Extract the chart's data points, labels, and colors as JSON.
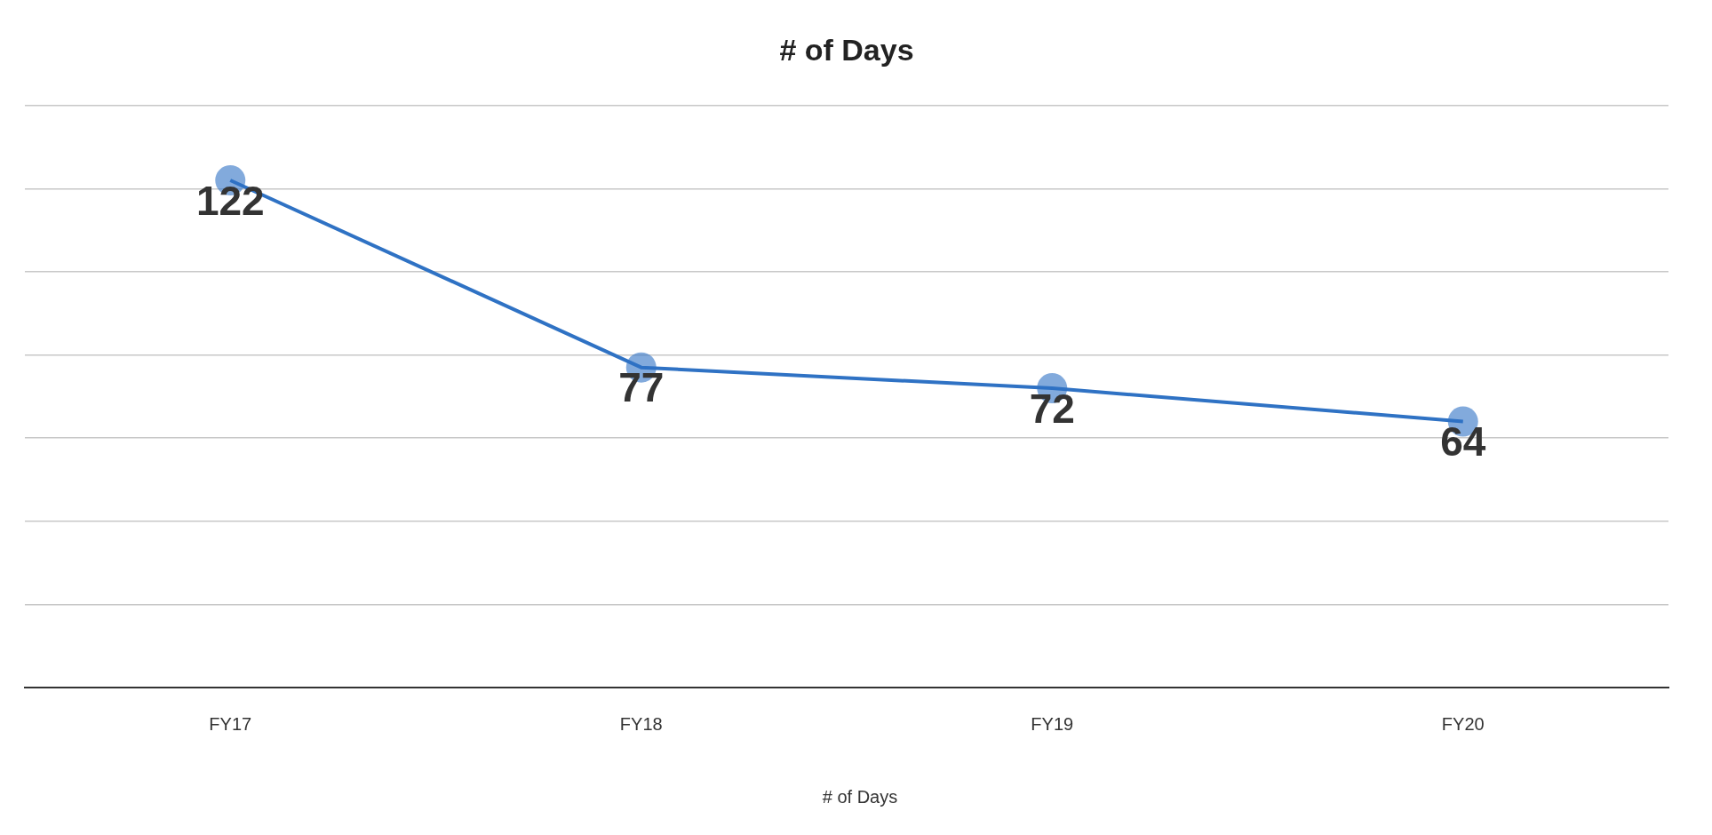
{
  "chart_data": {
    "type": "line",
    "title": "# of Days",
    "categories": [
      "FY17",
      "FY18",
      "FY19",
      "FY20"
    ],
    "series": [
      {
        "name": "# of Days",
        "color": "#2f72c4",
        "values": [
          122,
          77,
          72,
          64
        ]
      }
    ],
    "ylim": [
      0,
      140
    ],
    "yticks": [
      {
        "value": 0,
        "label": null
      },
      {
        "value": 20,
        "label": null
      },
      {
        "value": 40,
        "label": null
      },
      {
        "value": 60,
        "label": null
      },
      {
        "value": 80,
        "label": null
      },
      {
        "value": 100,
        "label": null
      },
      {
        "value": 120,
        "label": null
      },
      {
        "value": 140,
        "label": null
      }
    ],
    "tick_labels": "x",
    "grid": "y",
    "legend": "bottom",
    "marker": "circle",
    "line_style": "solid",
    "data_labels": true
  }
}
